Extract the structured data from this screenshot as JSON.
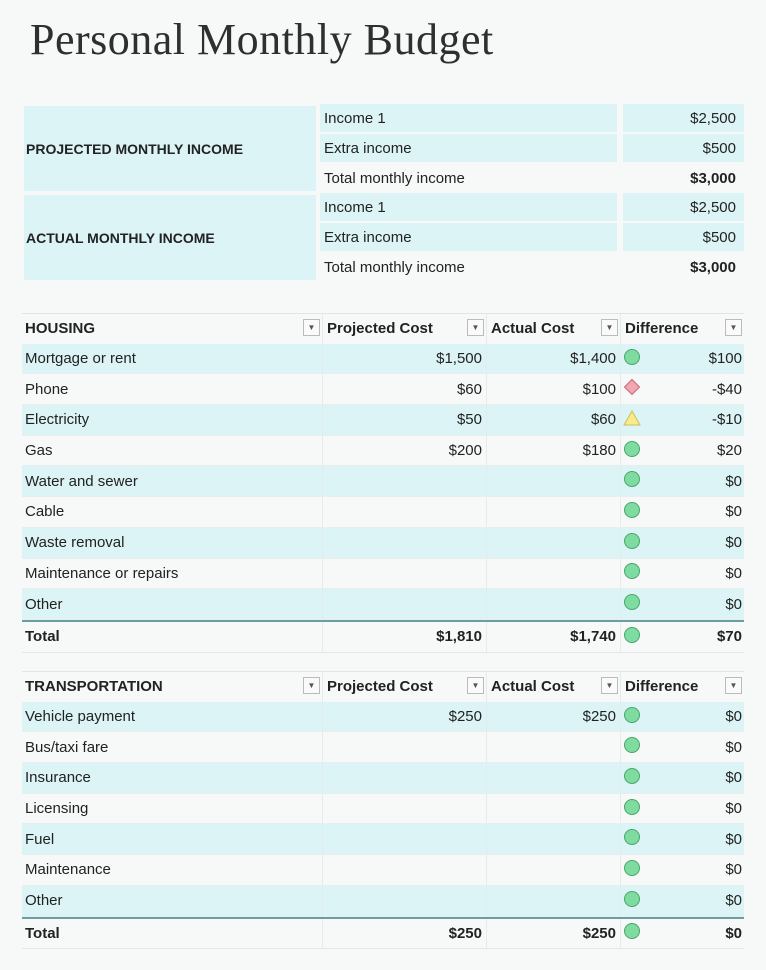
{
  "title": "Personal Monthly Budget",
  "colors": {
    "row_shade": "#dcf4f6",
    "ok": "#7fdca0",
    "bad": "#f2a6b0",
    "warn": "#f6ec8e"
  },
  "income": [
    {
      "label": "PROJECTED MONTHLY INCOME",
      "rows": [
        {
          "name": "Income 1",
          "amount": "$2,500"
        },
        {
          "name": "Extra income",
          "amount": "$500"
        },
        {
          "name": "Total monthly income",
          "amount": "$3,000"
        }
      ]
    },
    {
      "label": "ACTUAL MONTHLY INCOME",
      "rows": [
        {
          "name": "Income 1",
          "amount": "$2,500"
        },
        {
          "name": "Extra income",
          "amount": "$500"
        },
        {
          "name": "Total monthly income",
          "amount": "$3,000"
        }
      ]
    }
  ],
  "tables": [
    {
      "headers": [
        "HOUSING",
        "Projected Cost",
        "Actual Cost",
        "Difference"
      ],
      "rows": [
        {
          "name": "Mortgage or rent",
          "projected": "$1,500",
          "actual": "$1,400",
          "status": "green-circle",
          "difference": "$100"
        },
        {
          "name": "Phone",
          "projected": "$60",
          "actual": "$100",
          "status": "red-diamond",
          "difference": "-$40"
        },
        {
          "name": "Electricity",
          "projected": "$50",
          "actual": "$60",
          "status": "yellow-triangle",
          "difference": "-$10"
        },
        {
          "name": "Gas",
          "projected": "$200",
          "actual": "$180",
          "status": "green-circle",
          "difference": "$20"
        },
        {
          "name": "Water and sewer",
          "projected": "",
          "actual": "",
          "status": "green-circle",
          "difference": "$0"
        },
        {
          "name": "Cable",
          "projected": "",
          "actual": "",
          "status": "green-circle",
          "difference": "$0"
        },
        {
          "name": "Waste removal",
          "projected": "",
          "actual": "",
          "status": "green-circle",
          "difference": "$0"
        },
        {
          "name": "Maintenance or repairs",
          "projected": "",
          "actual": "",
          "status": "green-circle",
          "difference": "$0"
        },
        {
          "name": "Other",
          "projected": "",
          "actual": "",
          "status": "green-circle",
          "difference": "$0"
        }
      ],
      "total": {
        "name": "Total",
        "projected": "$1,810",
        "actual": "$1,740",
        "status": "green-circle",
        "difference": "$70"
      }
    },
    {
      "headers": [
        "TRANSPORTATION",
        "Projected Cost",
        "Actual Cost",
        "Difference"
      ],
      "rows": [
        {
          "name": "Vehicle payment",
          "projected": "$250",
          "actual": "$250",
          "status": "green-circle",
          "difference": "$0"
        },
        {
          "name": "Bus/taxi fare",
          "projected": "",
          "actual": "",
          "status": "green-circle",
          "difference": "$0"
        },
        {
          "name": "Insurance",
          "projected": "",
          "actual": "",
          "status": "green-circle",
          "difference": "$0"
        },
        {
          "name": "Licensing",
          "projected": "",
          "actual": "",
          "status": "green-circle",
          "difference": "$0"
        },
        {
          "name": "Fuel",
          "projected": "",
          "actual": "",
          "status": "green-circle",
          "difference": "$0"
        },
        {
          "name": "Maintenance",
          "projected": "",
          "actual": "",
          "status": "green-circle",
          "difference": "$0"
        },
        {
          "name": "Other",
          "projected": "",
          "actual": "",
          "status": "green-circle",
          "difference": "$0"
        }
      ],
      "total": {
        "name": "Total",
        "projected": "$250",
        "actual": "$250",
        "status": "green-circle",
        "difference": "$0"
      }
    }
  ]
}
